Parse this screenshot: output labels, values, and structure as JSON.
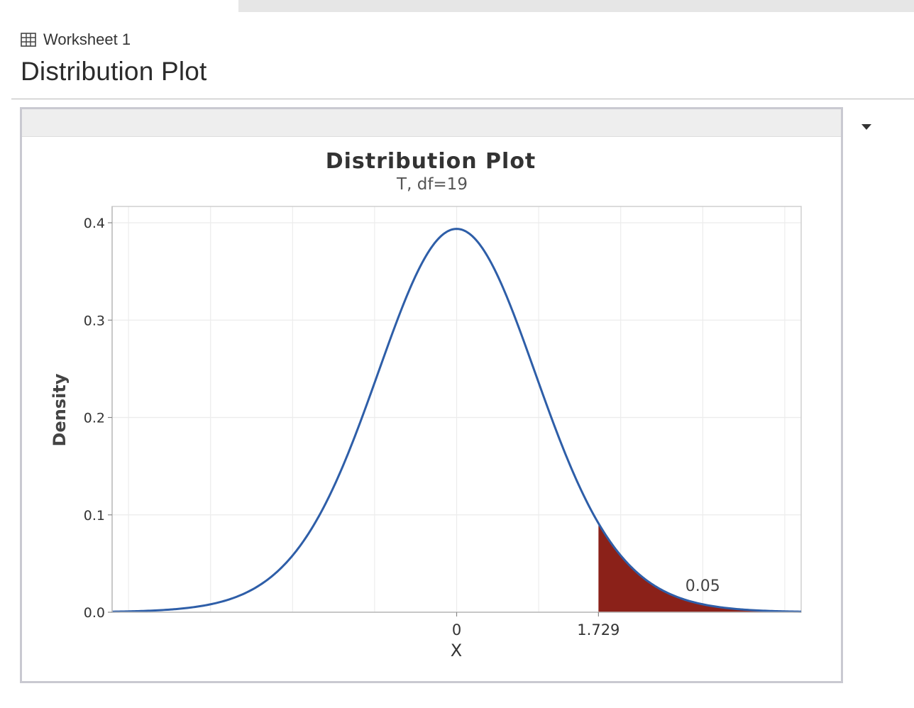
{
  "worksheet": {
    "label": "Worksheet 1",
    "icon": "table-grid-icon"
  },
  "page": {
    "title": "Distribution Plot"
  },
  "panel": {
    "menu_icon": "caret-down-icon"
  },
  "chart_data": {
    "type": "area",
    "title": "Distribution Plot",
    "subtitle": "T, df=19",
    "xlabel": "X",
    "ylabel": "Density",
    "distribution": {
      "family": "t",
      "df": 19
    },
    "xlim": [
      -4.2,
      4.2
    ],
    "ylim": [
      0,
      0.4
    ],
    "y_ticks": [
      0.0,
      0.1,
      0.2,
      0.3,
      0.4
    ],
    "y_tick_labels": [
      "0.0",
      "0.1",
      "0.2",
      "0.3",
      "0.4"
    ],
    "x_ticks": [
      0,
      1.729
    ],
    "x_tick_labels": [
      "0",
      "1.729"
    ],
    "shaded_region": {
      "from": 1.729,
      "to": 4.2,
      "area_label": "0.05",
      "color": "#8b2119"
    },
    "curve_color": "#2e5ea8",
    "grid": true
  }
}
